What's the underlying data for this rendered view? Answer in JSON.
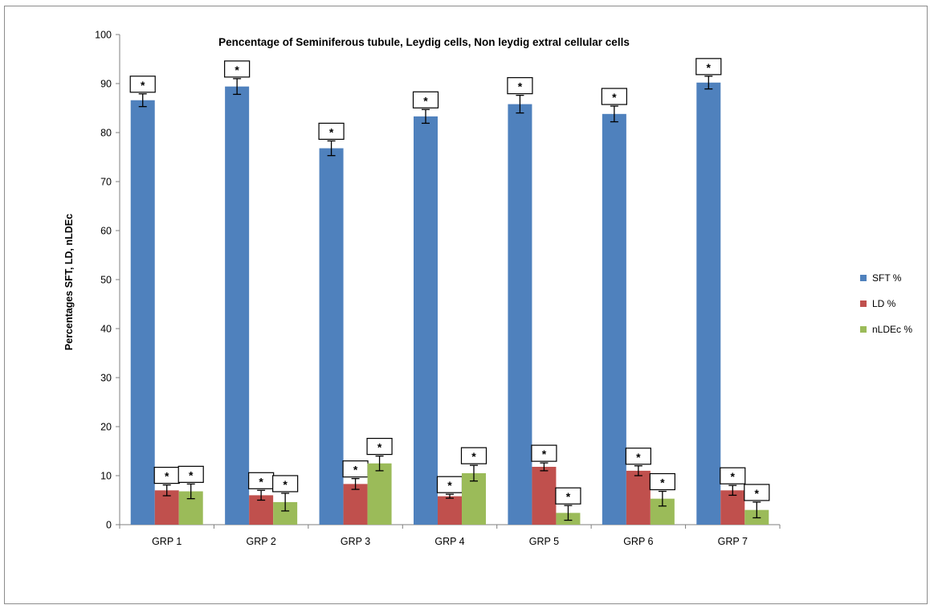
{
  "chart_data": {
    "type": "bar",
    "title": "Pencentage of Seminiferous tubule, Leydig cells, Non leydig extral cellular cells",
    "xlabel": "",
    "ylabel": "Percentages SFT, LD, nLDEc",
    "ylim": [
      0,
      100
    ],
    "yticks": [
      "0",
      "10",
      "20",
      "30",
      "40",
      "50",
      "60",
      "70",
      "80",
      "90",
      "100"
    ],
    "categories": [
      "GRP 1",
      "GRP 2",
      "GRP 3",
      "GRP 4",
      "GRP 5",
      "GRP 6",
      "GRP 7"
    ],
    "series": [
      {
        "name": "SFT %",
        "color": "#4f81bd",
        "values": [
          86.6,
          89.4,
          76.8,
          83.3,
          85.8,
          83.8,
          90.2
        ],
        "errors": [
          1.3,
          1.6,
          1.5,
          1.4,
          1.8,
          1.6,
          1.3
        ]
      },
      {
        "name": "LD %",
        "color": "#c0504d",
        "values": [
          7.0,
          6.0,
          8.3,
          5.8,
          11.8,
          11.0,
          7.0
        ],
        "errors": [
          1.1,
          1.0,
          1.1,
          0.4,
          0.8,
          1.0,
          1.0
        ]
      },
      {
        "name": "nLDEc %",
        "color": "#9bbb59",
        "values": [
          6.8,
          4.6,
          12.5,
          10.5,
          2.4,
          5.3,
          3.0
        ],
        "errors": [
          1.5,
          1.8,
          1.5,
          1.6,
          1.5,
          1.5,
          1.6
        ]
      }
    ],
    "annotations": {
      "significance_mark": "*"
    },
    "grid": false,
    "legend_position": "right"
  }
}
